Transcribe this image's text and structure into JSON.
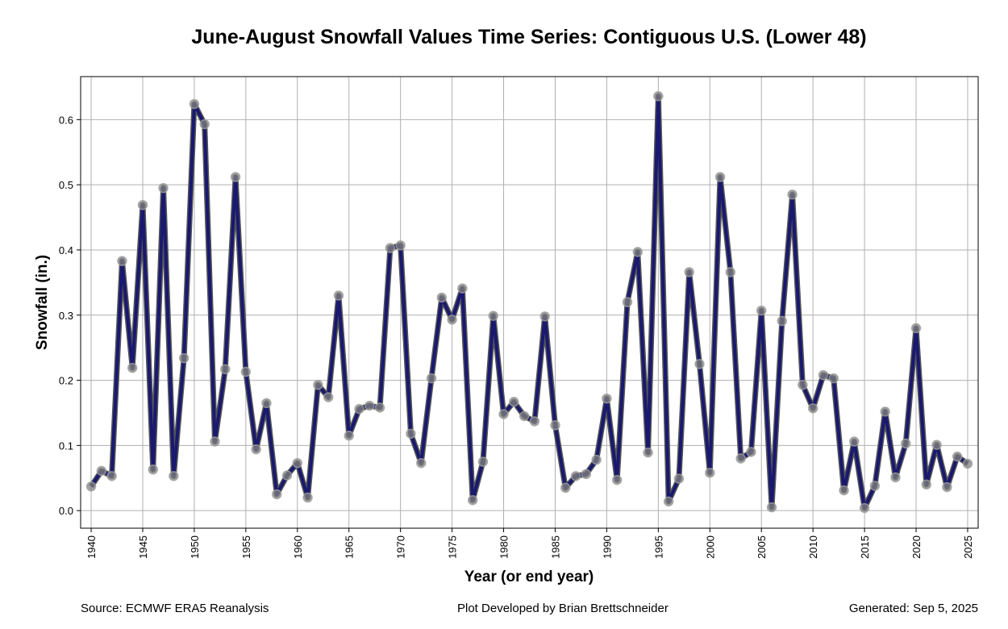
{
  "chart_data": {
    "type": "line",
    "title": "June-August Snowfall Values Time Series: Contiguous U.S. (Lower 48)",
    "xlabel": "Year (or end year)",
    "ylabel": "Snowfall (in.)",
    "xlim": [
      1938.98,
      2026.02
    ],
    "ylim": [
      -0.027,
      0.666
    ],
    "grid": true,
    "x_ticks": [
      1940,
      1945,
      1950,
      1955,
      1960,
      1965,
      1970,
      1975,
      1980,
      1985,
      1990,
      1995,
      2000,
      2005,
      2010,
      2015,
      2020,
      2025
    ],
    "y_ticks": [
      "0.0",
      "0.1",
      "0.2",
      "0.3",
      "0.4",
      "0.5",
      "0.6"
    ],
    "series": [
      {
        "name": "Snowfall",
        "color": "#191970",
        "x": [
          1940,
          1941,
          1942,
          1943,
          1944,
          1945,
          1946,
          1947,
          1948,
          1949,
          1950,
          1951,
          1952,
          1953,
          1954,
          1955,
          1956,
          1957,
          1958,
          1959,
          1960,
          1961,
          1962,
          1963,
          1964,
          1965,
          1966,
          1967,
          1968,
          1969,
          1970,
          1971,
          1972,
          1973,
          1974,
          1975,
          1976,
          1977,
          1978,
          1979,
          1980,
          1981,
          1982,
          1983,
          1984,
          1985,
          1986,
          1987,
          1988,
          1989,
          1990,
          1991,
          1992,
          1993,
          1994,
          1995,
          1996,
          1997,
          1998,
          1999,
          2000,
          2001,
          2002,
          2003,
          2004,
          2005,
          2006,
          2007,
          2008,
          2009,
          2010,
          2011,
          2012,
          2013,
          2014,
          2015,
          2016,
          2017,
          2018,
          2019,
          2020,
          2021,
          2022,
          2023,
          2024,
          2025
        ],
        "values": [
          0.037,
          0.061,
          0.053,
          0.383,
          0.219,
          0.469,
          0.063,
          0.495,
          0.053,
          0.234,
          0.624,
          0.593,
          0.106,
          0.217,
          0.512,
          0.213,
          0.094,
          0.165,
          0.025,
          0.054,
          0.073,
          0.02,
          0.193,
          0.174,
          0.33,
          0.115,
          0.156,
          0.161,
          0.158,
          0.403,
          0.407,
          0.118,
          0.073,
          0.203,
          0.327,
          0.293,
          0.341,
          0.016,
          0.075,
          0.299,
          0.148,
          0.167,
          0.145,
          0.137,
          0.298,
          0.131,
          0.035,
          0.053,
          0.056,
          0.078,
          0.172,
          0.047,
          0.32,
          0.397,
          0.089,
          0.636,
          0.014,
          0.049,
          0.366,
          0.225,
          0.058,
          0.512,
          0.366,
          0.08,
          0.09,
          0.307,
          0.005,
          0.291,
          0.485,
          0.193,
          0.157,
          0.208,
          0.203,
          0.031,
          0.106,
          0.004,
          0.038,
          0.152,
          0.051,
          0.103,
          0.28,
          0.04,
          0.101,
          0.036,
          0.083,
          0.072
        ]
      }
    ]
  },
  "footer": {
    "source": "Source: ECMWF ERA5 Reanalysis",
    "credit": "Plot Developed by Brian Brettschneider",
    "generated": "Generated: Sep 5, 2025"
  }
}
